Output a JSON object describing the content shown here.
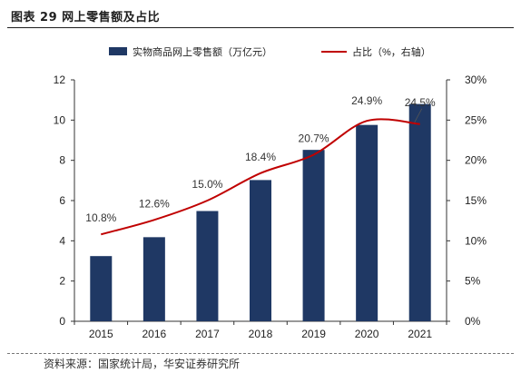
{
  "figure": {
    "title": "图表 29  网上零售额及占比",
    "source": "资料来源：国家统计局，华安证券研究所"
  },
  "chart_data": {
    "type": "bar",
    "categories": [
      "2015",
      "2016",
      "2017",
      "2018",
      "2019",
      "2020",
      "2021"
    ],
    "series": [
      {
        "name": "实物商品网上零售额（万亿元）",
        "type": "bar",
        "axis": "left",
        "values": [
          3.24,
          4.18,
          5.48,
          7.02,
          8.52,
          9.76,
          10.8
        ],
        "color": "#1f3864"
      },
      {
        "name": "占比（%，右轴）",
        "type": "line",
        "axis": "right",
        "values": [
          10.8,
          12.6,
          15.0,
          18.4,
          20.7,
          24.9,
          24.5
        ],
        "color": "#c00000"
      }
    ],
    "data_labels": [
      "10.8%",
      "12.6%",
      "15.0%",
      "18.4%",
      "20.7%",
      "24.9%",
      "24.5%"
    ],
    "y_left": {
      "min": 0,
      "max": 12,
      "ticks": [
        "0",
        "2",
        "4",
        "6",
        "8",
        "10",
        "12"
      ]
    },
    "y_right": {
      "min": 0,
      "max": 30,
      "ticks": [
        "0%",
        "5%",
        "10%",
        "15%",
        "20%",
        "25%",
        "30%"
      ]
    },
    "legend_position": "top",
    "grid": false
  }
}
